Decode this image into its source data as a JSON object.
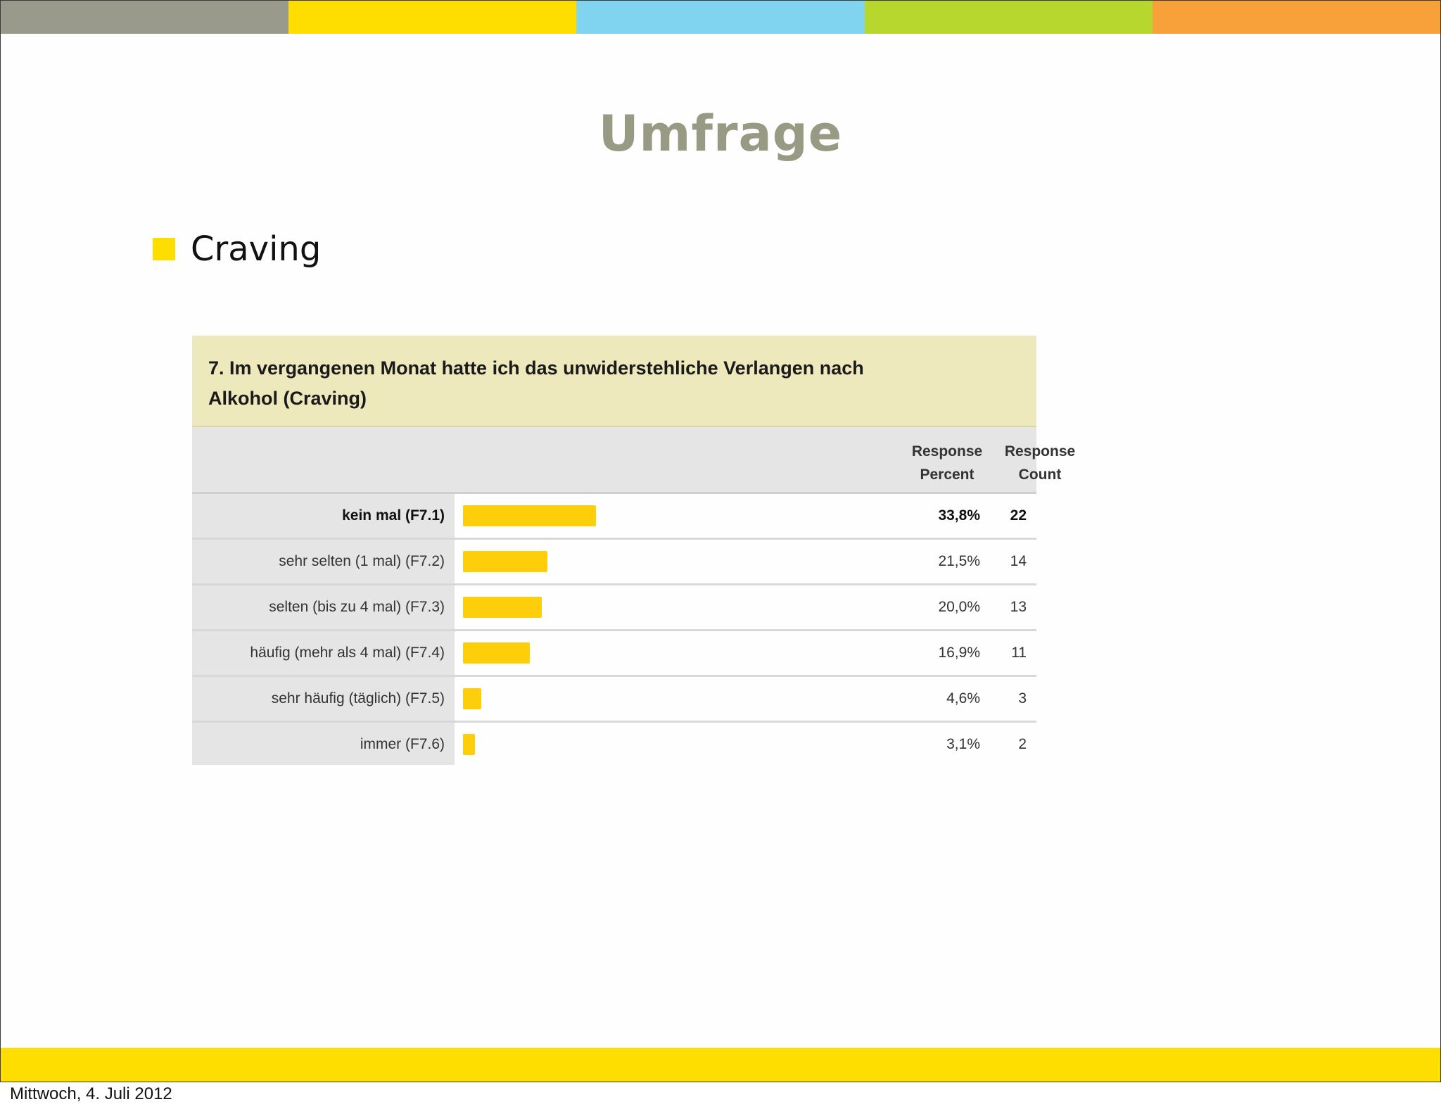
{
  "slide": {
    "title": "Umfrage",
    "bullet": {
      "text": "Craving",
      "color": "#fedd00"
    },
    "top_bar_colors": [
      "#999a8c",
      "#fedd00",
      "#80d4ef",
      "#b7d72f",
      "#f8a13a"
    ],
    "footer_date": "Mittwoch, 4. Juli 2012"
  },
  "survey": {
    "question_line1": "7. Im vergangenen Monat hatte ich das unwiderstehliche Verlangen nach",
    "question_line2": "Alkohol (Craving)",
    "col_percent_line1": "Response",
    "col_percent_line2": "Percent",
    "col_count_line1": "Response",
    "col_count_line2": "Count",
    "bar_color": "#fece0b",
    "rows": [
      {
        "label": "kein mal (F7.1)",
        "percent_text": "33,8%",
        "count": "22",
        "percent": 33.8
      },
      {
        "label": "sehr selten (1 mal) (F7.2)",
        "percent_text": "21,5%",
        "count": "14",
        "percent": 21.5
      },
      {
        "label": "selten (bis zu 4 mal) (F7.3)",
        "percent_text": "20,0%",
        "count": "13",
        "percent": 20.0
      },
      {
        "label": "häufig (mehr als 4 mal) (F7.4)",
        "percent_text": "16,9%",
        "count": "11",
        "percent": 16.9
      },
      {
        "label": "sehr häufig (täglich) (F7.5)",
        "percent_text": "4,6%",
        "count": "3",
        "percent": 4.6
      },
      {
        "label": "immer (F7.6)",
        "percent_text": "3,1%",
        "count": "2",
        "percent": 3.1
      }
    ]
  },
  "chart_data": {
    "type": "bar",
    "title": "7. Im vergangenen Monat hatte ich das unwiderstehliche Verlangen nach Alkohol (Craving)",
    "categories": [
      "kein mal (F7.1)",
      "sehr selten (1 mal) (F7.2)",
      "selten (bis zu 4 mal) (F7.3)",
      "häufig (mehr als 4 mal) (F7.4)",
      "sehr häufig (täglich) (F7.5)",
      "immer (F7.6)"
    ],
    "series": [
      {
        "name": "Response Percent",
        "values": [
          33.8,
          21.5,
          20.0,
          16.9,
          4.6,
          3.1
        ]
      },
      {
        "name": "Response Count",
        "values": [
          22,
          14,
          13,
          11,
          3,
          2
        ]
      }
    ]
  }
}
